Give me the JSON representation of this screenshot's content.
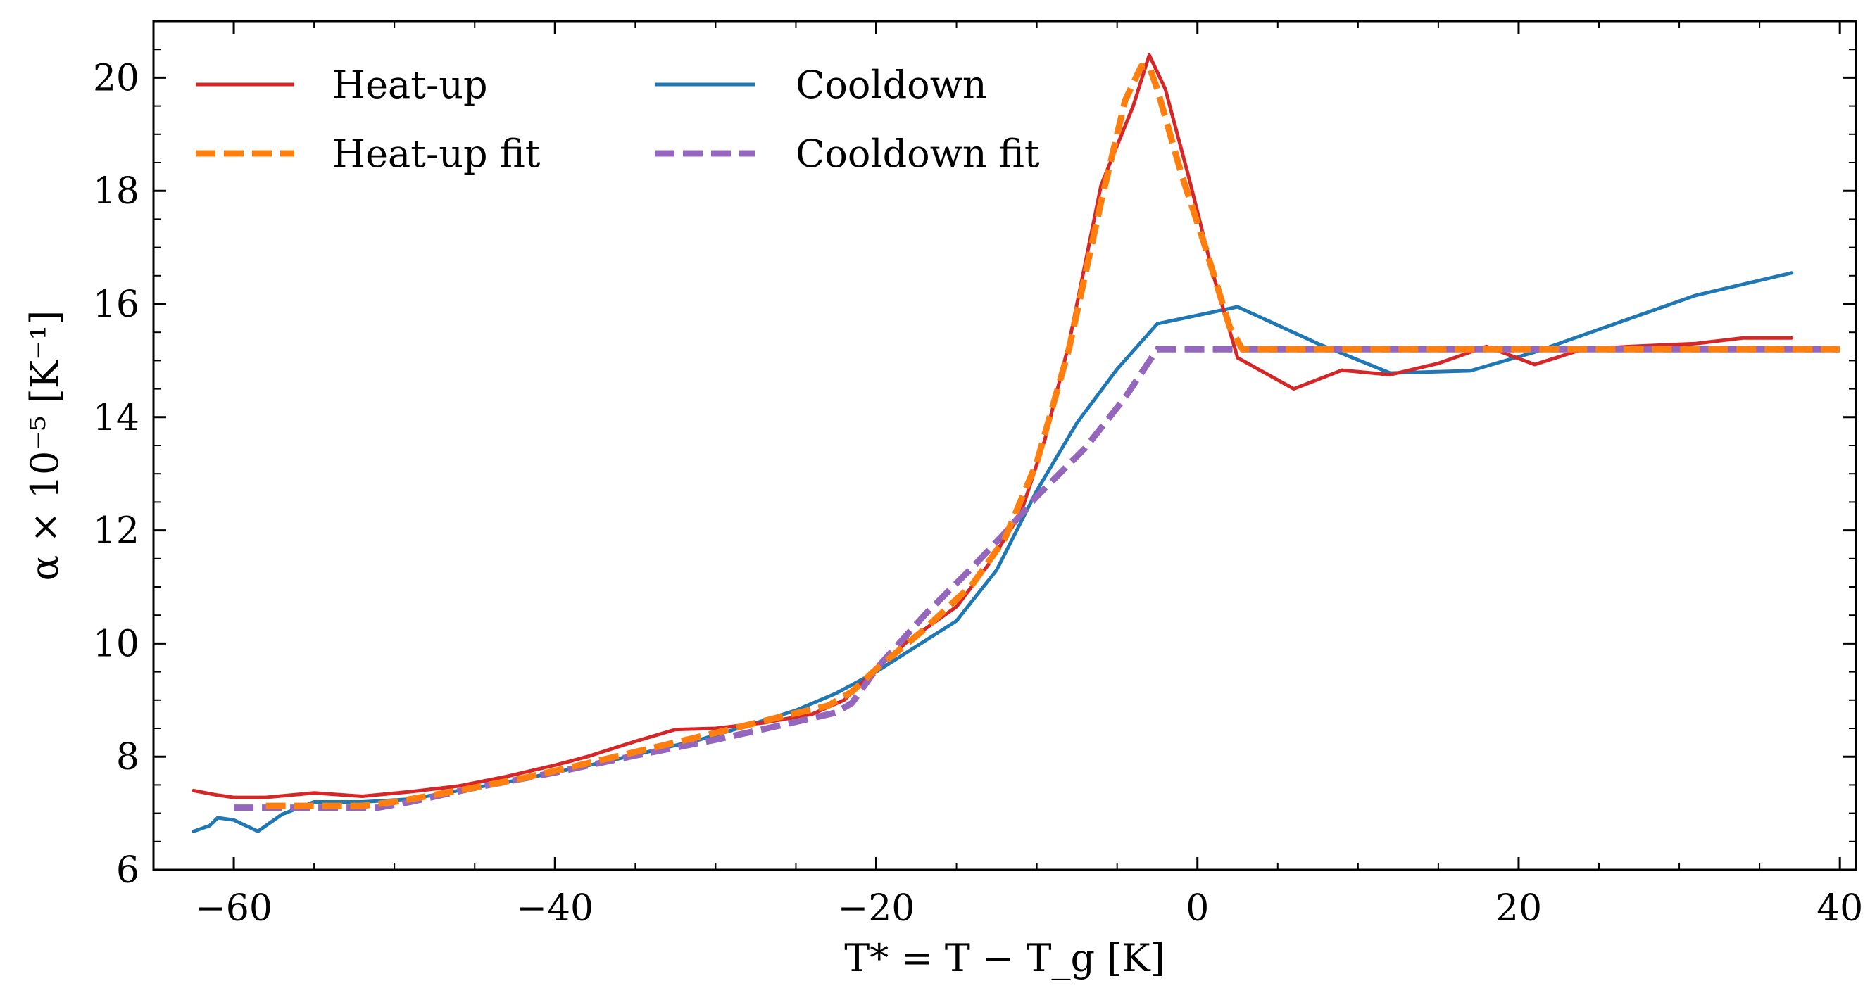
{
  "chart_data": {
    "type": "line",
    "title": "",
    "xlabel": "T* = T − T_g [K]",
    "ylabel": "α × 10⁻⁵ [K⁻¹]",
    "xlim": [
      -65,
      41
    ],
    "ylim": [
      6,
      21
    ],
    "x_ticks": [
      -60,
      -40,
      -20,
      0,
      20,
      40
    ],
    "x_tick_labels": [
      "−60",
      "−40",
      "−20",
      "0",
      "20",
      "40"
    ],
    "y_ticks": [
      6,
      8,
      10,
      12,
      14,
      16,
      18,
      20
    ],
    "y_tick_labels": [
      "6",
      "8",
      "10",
      "12",
      "14",
      "16",
      "18",
      "20"
    ],
    "legend_position": "top-left",
    "series": [
      {
        "name": "Heat-up",
        "color": "#d62728",
        "style": "solid",
        "x": [
          -62.5,
          -61,
          -60,
          -58,
          -55,
          -52,
          -49,
          -46,
          -43,
          -40,
          -38,
          -35,
          -32.5,
          -30,
          -27,
          -24,
          -22,
          -20,
          -18,
          -15,
          -13,
          -11,
          -9.5,
          -8,
          -6,
          -4,
          -3,
          -2,
          -0.5,
          1,
          2.5,
          6,
          9,
          12,
          15,
          18,
          21,
          24,
          27,
          31,
          34,
          37
        ],
        "values": [
          7.4,
          7.32,
          7.28,
          7.28,
          7.36,
          7.3,
          7.38,
          7.48,
          7.65,
          7.85,
          8.0,
          8.27,
          8.48,
          8.5,
          8.6,
          8.75,
          9.0,
          9.55,
          10.05,
          10.65,
          11.4,
          12.3,
          13.6,
          15.3,
          18.1,
          19.5,
          20.4,
          19.8,
          18.2,
          16.5,
          15.05,
          14.5,
          14.83,
          14.75,
          14.95,
          15.25,
          14.93,
          15.2,
          15.25,
          15.3,
          15.4,
          15.4
        ]
      },
      {
        "name": "Cooldown",
        "color": "#1f77b4",
        "style": "solid",
        "x": [
          -62.5,
          -61.5,
          -61,
          -60,
          -58.5,
          -57,
          -55,
          -52,
          -49,
          -46,
          -43,
          -40,
          -37,
          -34,
          -31,
          -28,
          -25,
          -22.5,
          -20,
          -17.5,
          -15,
          -12.5,
          -10,
          -7.5,
          -5,
          -2.5,
          2.5,
          7.5,
          12,
          17,
          21,
          26,
          31,
          37
        ],
        "values": [
          6.68,
          6.78,
          6.92,
          6.88,
          6.68,
          6.98,
          7.2,
          7.2,
          7.25,
          7.4,
          7.55,
          7.72,
          7.9,
          8.1,
          8.3,
          8.55,
          8.82,
          9.12,
          9.5,
          9.95,
          10.4,
          11.3,
          12.7,
          13.9,
          14.85,
          15.65,
          15.95,
          15.3,
          14.78,
          14.82,
          15.15,
          15.65,
          16.15,
          16.55
        ]
      },
      {
        "name": "Heat-up fit",
        "color": "#ff7f0e",
        "style": "dashed",
        "x": [
          -58,
          -52,
          -50,
          -46,
          -42,
          -38,
          -34,
          -30,
          -26,
          -23,
          -21.5,
          -20,
          -17,
          -14,
          -12,
          -10,
          -8,
          -6,
          -4.5,
          -3.5,
          -3,
          -2.5,
          -1,
          0.5,
          2,
          2.8,
          10,
          20,
          30,
          40
        ],
        "values": [
          7.13,
          7.13,
          7.2,
          7.4,
          7.62,
          7.88,
          8.15,
          8.42,
          8.7,
          8.9,
          9.15,
          9.55,
          10.25,
          11.05,
          11.85,
          13.2,
          15.2,
          17.8,
          19.6,
          20.2,
          20.2,
          19.8,
          18.3,
          17.0,
          15.6,
          15.2,
          15.2,
          15.2,
          15.2,
          15.2
        ]
      },
      {
        "name": "Cooldown fit",
        "color": "#9467bd",
        "style": "dashed",
        "x": [
          -60,
          -51,
          -49,
          -45,
          -40,
          -35,
          -30,
          -26,
          -22.5,
          -21.5,
          -20,
          -17,
          -14,
          -12,
          -10,
          -7,
          -4.5,
          -2.5,
          0,
          10,
          20,
          30,
          40
        ],
        "values": [
          7.1,
          7.1,
          7.2,
          7.45,
          7.72,
          8.02,
          8.3,
          8.55,
          8.78,
          8.95,
          9.55,
          10.5,
          11.35,
          11.95,
          12.6,
          13.45,
          14.35,
          15.2,
          15.2,
          15.2,
          15.2,
          15.2,
          15.2
        ]
      }
    ]
  }
}
